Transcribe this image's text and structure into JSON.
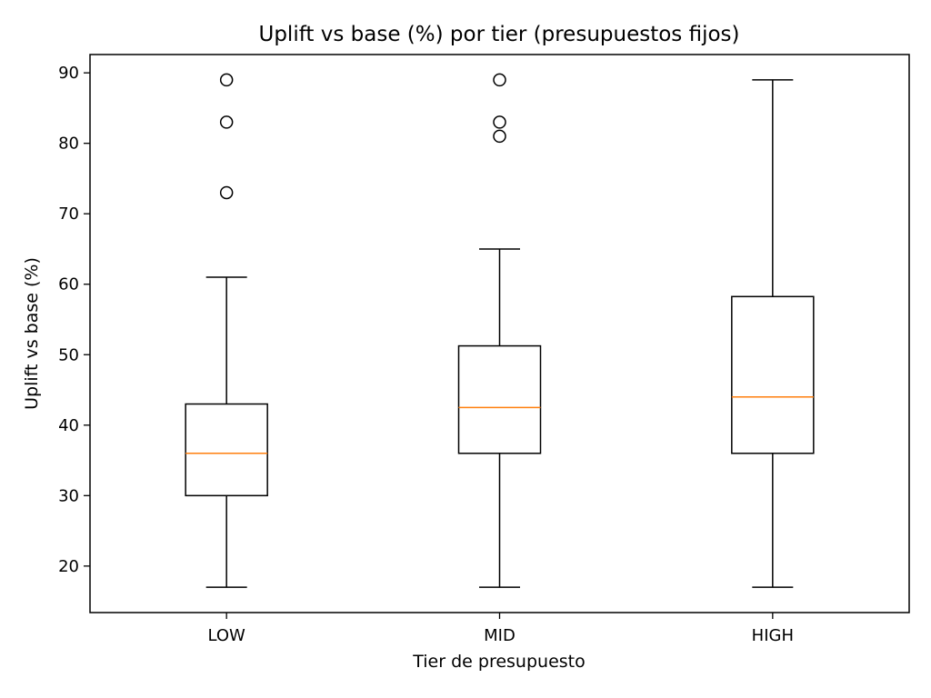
{
  "chart_data": {
    "type": "boxplot",
    "title": "Uplift vs base (%) por tier (presupuestos fijos)",
    "xlabel": "Tier de presupuesto",
    "ylabel": "Uplift vs base (%)",
    "ylim": [
      13.4,
      92.6
    ],
    "yticks": [
      20,
      30,
      40,
      50,
      60,
      70,
      80,
      90
    ],
    "grid": false,
    "categories": [
      "LOW",
      "MID",
      "HIGH"
    ],
    "boxes": [
      {
        "category": "LOW",
        "whisker_low": 17,
        "q1": 30,
        "median": 36,
        "q3": 43,
        "whisker_high": 61,
        "outliers": [
          73,
          83,
          89
        ]
      },
      {
        "category": "MID",
        "whisker_low": 17,
        "q1": 36,
        "median": 42.5,
        "q3": 51.25,
        "whisker_high": 65,
        "outliers": [
          81,
          83,
          89
        ]
      },
      {
        "category": "HIGH",
        "whisker_low": 17,
        "q1": 36,
        "median": 44,
        "q3": 58.25,
        "whisker_high": 89,
        "outliers": []
      }
    ],
    "colors": {
      "box": "#000000",
      "median": "#ff7f0e",
      "outlier": "#000000"
    }
  }
}
